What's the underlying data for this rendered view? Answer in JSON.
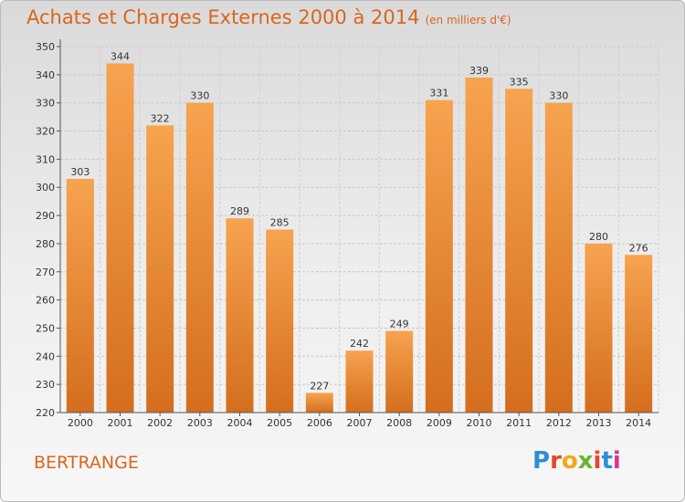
{
  "header": {
    "title": "Achats et Charges Externes 2000 à 2014",
    "unit": "(en milliers d'€)"
  },
  "commune": "BERTRANGE",
  "brand": {
    "letters": [
      "P",
      "r",
      "o",
      "x",
      "i",
      "t",
      "i"
    ],
    "colors": [
      "#2b8fd6",
      "#e8472a",
      "#f4a71c",
      "#6ab52e",
      "#e8472a",
      "#2b8fd6",
      "#e0338b"
    ]
  },
  "colors": {
    "title": "#d9661c",
    "bar_top": "#f7a34f",
    "bar_bottom": "#d46e1e"
  },
  "chart_data": {
    "type": "bar",
    "title": "Achats et Charges Externes 2000 à 2014",
    "subtitle": "(en milliers d'€)",
    "categories": [
      "2000",
      "2001",
      "2002",
      "2003",
      "2004",
      "2005",
      "2006",
      "2007",
      "2008",
      "2009",
      "2010",
      "2011",
      "2012",
      "2013",
      "2014"
    ],
    "values": [
      303,
      344,
      322,
      330,
      289,
      285,
      227,
      242,
      249,
      331,
      339,
      335,
      330,
      280,
      276
    ],
    "ylim": [
      220,
      350
    ],
    "yticks": [
      220,
      230,
      240,
      250,
      260,
      270,
      280,
      290,
      300,
      310,
      320,
      330,
      340,
      350
    ],
    "grid": true,
    "data_labels": true
  }
}
